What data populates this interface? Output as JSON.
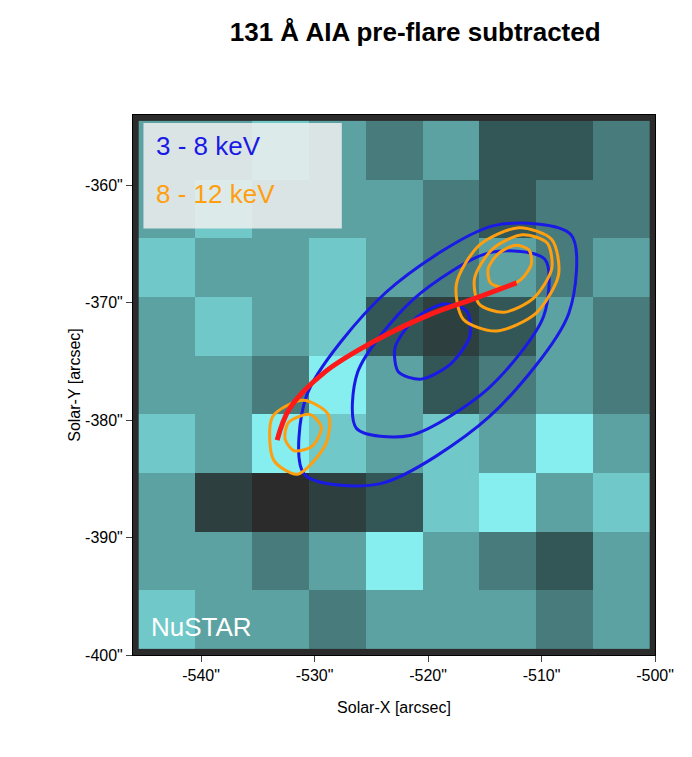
{
  "chart_data": {
    "type": "contour_overlay",
    "title": "131 Å AIA pre-flare subtracted",
    "x_label": "Solar-X [arcsec]",
    "y_label": "Solar-Y [arcsec]",
    "xlim": [
      -546,
      -500
    ],
    "ylim": [
      -400,
      -354
    ],
    "xticks": [
      {
        "value": -540,
        "label": "-540\""
      },
      {
        "value": -530,
        "label": "-530\""
      },
      {
        "value": -520,
        "label": "-520\""
      },
      {
        "value": -510,
        "label": "-510\""
      },
      {
        "value": -500,
        "label": "-500\""
      }
    ],
    "yticks": [
      {
        "value": -400,
        "label": "-400\""
      },
      {
        "value": -390,
        "label": "-390\""
      },
      {
        "value": -380,
        "label": "-380\""
      },
      {
        "value": -370,
        "label": "-370\""
      },
      {
        "value": -360,
        "label": "-360\""
      }
    ],
    "legend": "upper left",
    "image": {
      "x": [
        -543,
        -538,
        -533,
        -528,
        -523,
        -518,
        -513,
        -508,
        -503
      ],
      "y": [
        -397,
        -392,
        -387,
        -382,
        -377,
        -372,
        -367,
        -362,
        -357
      ],
      "z": [
        [
          0.6,
          0.5,
          0.5,
          0.4,
          0.5,
          0.5,
          0.5,
          0.4,
          0.5
        ],
        [
          0.5,
          0.5,
          0.4,
          0.5,
          0.7,
          0.5,
          0.4,
          0.3,
          0.5
        ],
        [
          0.5,
          0.2,
          0.1,
          0.2,
          0.3,
          0.6,
          0.7,
          0.5,
          0.6
        ],
        [
          0.6,
          0.5,
          0.7,
          0.6,
          0.5,
          0.6,
          0.5,
          0.7,
          0.5
        ],
        [
          0.5,
          0.5,
          0.4,
          0.7,
          0.5,
          0.3,
          0.4,
          0.5,
          0.4
        ],
        [
          0.5,
          0.6,
          0.5,
          0.6,
          0.3,
          0.2,
          0.3,
          0.5,
          0.4
        ],
        [
          0.6,
          0.5,
          0.5,
          0.6,
          0.5,
          0.4,
          0.5,
          0.4,
          0.5
        ],
        [
          0.5,
          0.6,
          0.5,
          0.5,
          0.5,
          0.4,
          0.3,
          0.4,
          0.4
        ],
        [
          0.5,
          0.5,
          0.6,
          0.5,
          0.4,
          0.5,
          0.3,
          0.3,
          0.4
        ]
      ]
    },
    "series": [
      {
        "name": "3 - 8 keV",
        "color": "#1a1ae6",
        "contours": [
          {
            "x": [
              -507.4,
              -514.1,
              -523.7,
              -530.7,
              -530.9,
              -524.2,
              -514.6,
              -507.6
            ],
            "y": [
              -364.2,
              -363.4,
              -369.1,
              -377.9,
              -384.6,
              -385.4,
              -379.7,
              -370.9
            ]
          },
          {
            "x": [
              -509.7,
              -514.5,
              -521.3,
              -526.2,
              -526.3,
              -521.6,
              -514.7,
              -509.8
            ],
            "y": [
              -366.3,
              -365.7,
              -369.7,
              -375.9,
              -380.7,
              -381.3,
              -377.3,
              -371.1
            ]
          },
          {
            "x": [
              -516.6,
              -518.6,
              -521.2,
              -522.9,
              -522.6,
              -520.6,
              -518.0,
              -516.3
            ],
            "y": [
              -370.7,
              -370.1,
              -371.4,
              -373.8,
              -375.9,
              -376.5,
              -375.2,
              -372.8
            ]
          }
        ]
      },
      {
        "name": "8 - 12 keV",
        "color": "#ff9f0f",
        "contours": [
          {
            "x": [
              -509.1,
              -512.0,
              -515.5,
              -517.5,
              -516.9,
              -514.0,
              -510.5,
              -508.5
            ],
            "y": [
              -364.6,
              -363.6,
              -365.1,
              -368.4,
              -371.4,
              -372.4,
              -370.9,
              -367.6
            ]
          },
          {
            "x": [
              -509.5,
              -511.7,
              -514.3,
              -515.9,
              -515.5,
              -513.3,
              -510.7,
              -509.1
            ],
            "y": [
              -364.9,
              -364.2,
              -365.4,
              -367.9,
              -370.1,
              -370.8,
              -369.6,
              -367.1
            ]
          },
          {
            "x": [
              -511.1,
              -512.3,
              -513.8,
              -514.7,
              -514.5,
              -513.3,
              -511.8,
              -510.9
            ],
            "y": [
              -365.5,
              -365.1,
              -365.8,
              -367.1,
              -368.3,
              -368.7,
              -368.0,
              -366.7
            ]
          },
          {
            "x": [
              -533.7,
              -531.0,
              -528.8,
              -529.0,
              -531.5,
              -533.6
            ],
            "y": [
              -379.7,
              -378.3,
              -379.5,
              -382.0,
              -384.6,
              -383.4
            ]
          },
          {
            "x": [
              -532.3,
              -530.4,
              -529.4,
              -530.2,
              -531.8,
              -532.6
            ],
            "y": [
              -380.2,
              -379.5,
              -380.6,
              -382.2,
              -382.6,
              -381.6
            ]
          }
        ]
      }
    ],
    "curve": {
      "color": "#ff1a1a",
      "x": [
        -533.3,
        -532.2,
        -529.1,
        -524.8,
        -519.6,
        -516.1,
        -512.2
      ],
      "y": [
        -381.7,
        -379.0,
        -375.9,
        -373.3,
        -370.9,
        -369.7,
        -368.3
      ]
    },
    "annotations": [
      "NuSTAR"
    ]
  }
}
